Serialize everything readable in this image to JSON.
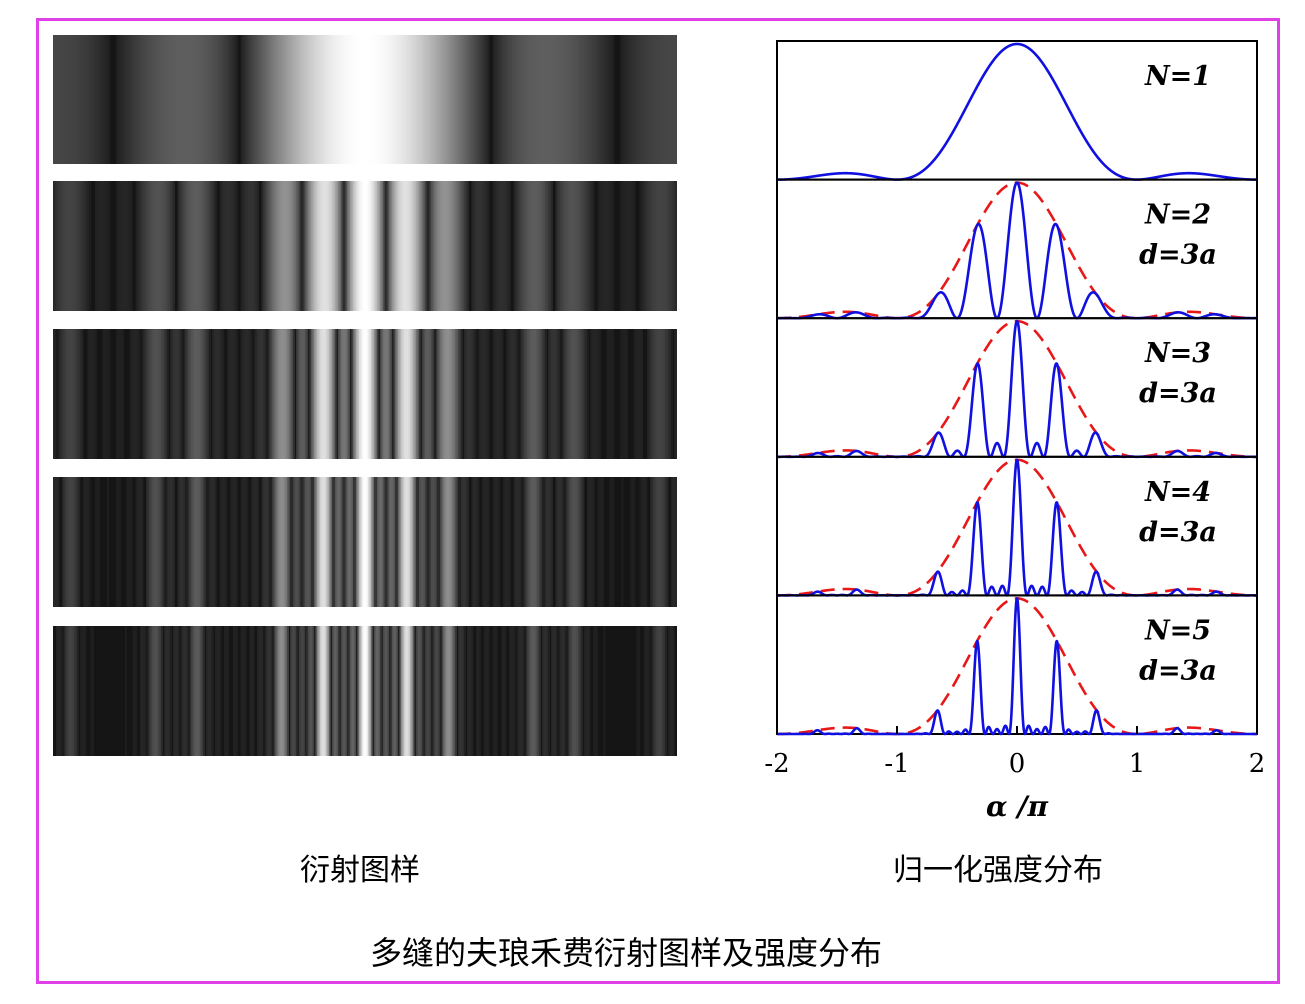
{
  "captions": {
    "pattern": "衍射图样",
    "intensity": "归一化强度分布",
    "main": "多缝的夫琅禾费衍射图样及强度分布"
  },
  "colors": {
    "frame": "#e040e8",
    "intensity_curve": "#1010e0",
    "envelope": "#e81818"
  },
  "chart_data": {
    "type": "line",
    "xlabel": "α /π",
    "xlim": [
      -2,
      2
    ],
    "xticks": [
      -2,
      -1,
      0,
      1,
      2
    ],
    "slit_spacing_ratio": 3,
    "panels": [
      {
        "N": 1,
        "label_line1": "N=1",
        "label_line2": "",
        "envelope": false
      },
      {
        "N": 2,
        "label_line1": "N=2",
        "label_line2": "d=3a",
        "envelope": true
      },
      {
        "N": 3,
        "label_line1": "N=3",
        "label_line2": "d=3a",
        "envelope": true
      },
      {
        "N": 4,
        "label_line1": "N=4",
        "label_line2": "d=3a",
        "envelope": true
      },
      {
        "N": 5,
        "label_line1": "N=5",
        "label_line2": "d=3a",
        "envelope": true
      }
    ]
  }
}
